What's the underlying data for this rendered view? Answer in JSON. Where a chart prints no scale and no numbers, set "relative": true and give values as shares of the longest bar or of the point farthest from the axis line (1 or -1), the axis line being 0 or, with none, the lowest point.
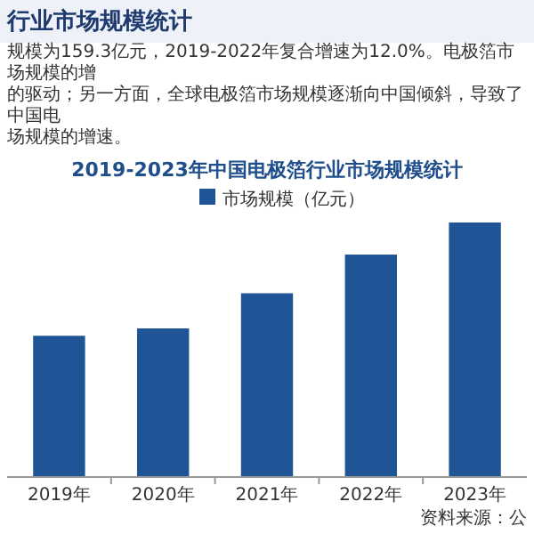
{
  "chart_data": {
    "type": "bar",
    "relative": true,
    "title": "2019-2023年中国电极箔行业市场规模统计",
    "categories": [
      "2019年",
      "2020年",
      "2021年",
      "2022年",
      "2023年"
    ],
    "legend": "top",
    "series": [
      {
        "name": "市场规模（亿元）",
        "color": "#1f5597",
        "values": [
          0.555,
          0.584,
          0.722,
          0.874,
          1
        ]
      }
    ],
    "annotations": [
      "行业市场规模统计",
      "规模为159.3亿元，2019-2022年复合增速为12.0%。电极箔市场规模的增",
      "的驱动；另一方面，全球电极箔市场规模逐渐向中国倾斜，导致了中国电",
      "场规模的增速。",
      "资料来源：公"
    ]
  }
}
